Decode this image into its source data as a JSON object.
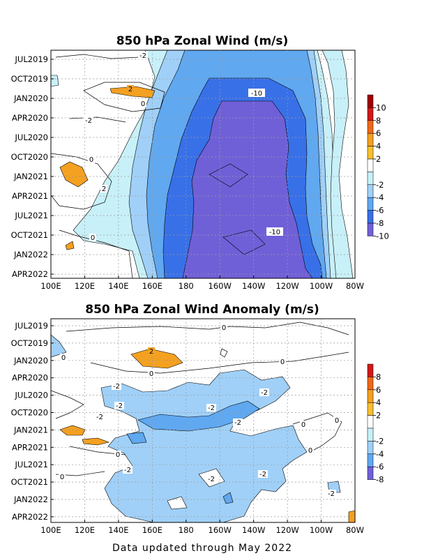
{
  "footer": "Data updated through May 2022",
  "palette": {
    "pos10": "#a00000",
    "pos8": "#d01818",
    "pos6": "#f06818",
    "pos4": "#f4a020",
    "pos2": "#f8c030",
    "neutral": "#ffffff",
    "neg2": "#c8f0f8",
    "neg4": "#a0d0f8",
    "neg6": "#60a8f0",
    "neg8": "#3870e8",
    "neg10": "#7060d8"
  },
  "chart_data": [
    {
      "type": "heatmap",
      "title": "850 hPa Zonal Wind (m/s)",
      "x_ticks": [
        "100E",
        "120E",
        "140E",
        "160E",
        "180",
        "160W",
        "140W",
        "120W",
        "100W",
        "80W"
      ],
      "y_ticks": [
        "JUL2019",
        "OCT2019",
        "JAN2020",
        "APR2020",
        "JUL2020",
        "OCT2020",
        "JAN2021",
        "APR2021",
        "JUL2021",
        "OCT2021",
        "JAN2022",
        "APR2022"
      ],
      "colorbar": [
        "10",
        "8",
        "6",
        "4",
        "2",
        "-2",
        "-4",
        "-6",
        "-8",
        "-10"
      ],
      "contour_labels": [
        "-2",
        "2",
        "0",
        "-10",
        "-2",
        "0",
        "2",
        "0",
        "-10"
      ],
      "grid": true
    },
    {
      "type": "heatmap",
      "title": "850 hPa Zonal Wind Anomaly (m/s)",
      "x_ticks": [
        "100E",
        "120E",
        "140E",
        "160E",
        "180",
        "160W",
        "140W",
        "120W",
        "100W",
        "80W"
      ],
      "y_ticks": [
        "JUL2019",
        "OCT2019",
        "JAN2020",
        "APR2020",
        "JUL2020",
        "OCT2020",
        "JAN2021",
        "APR2021",
        "JUL2021",
        "OCT2021",
        "JAN2022",
        "APR2022"
      ],
      "colorbar": [
        "8",
        "6",
        "4",
        "2",
        "-2",
        "-4",
        "-6",
        "-8"
      ],
      "contour_labels": [
        "0",
        "2",
        "0",
        "0",
        "0",
        "-2",
        "-2",
        "-2",
        "-2",
        "-2",
        "0",
        "0",
        "0",
        "-2",
        "-2",
        "-2",
        "-2",
        "-2",
        "0",
        "0"
      ],
      "grid": true
    }
  ]
}
